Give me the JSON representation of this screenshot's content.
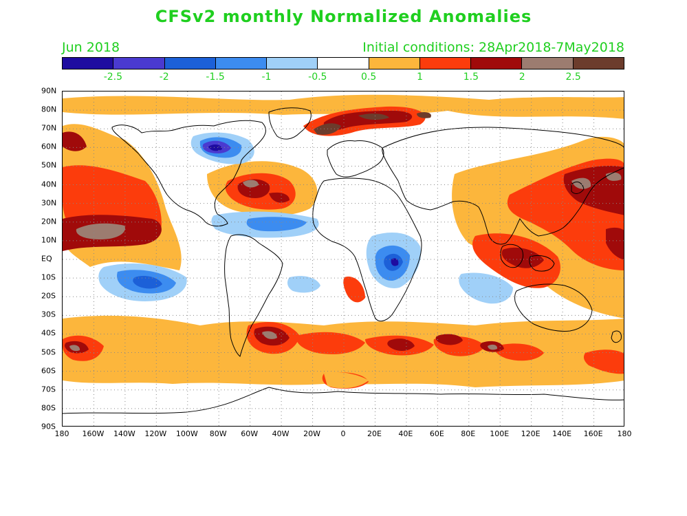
{
  "title": "CFSv2 monthly Normalized Anomalies",
  "forecast_month": "Jun 2018",
  "initial_conditions": "Initial conditions: 28Apr2018-7May2018",
  "legend": {
    "colors": [
      "#1e0ca0",
      "#4a3ad0",
      "#1c60d8",
      "#3c8cf0",
      "#a0d0f8",
      "#ffffff",
      "#fcb63c",
      "#fc3c0c",
      "#a00a0a",
      "#9c7c70",
      "#6c3c2c"
    ],
    "labels": [
      "-2.5",
      "-2",
      "-1.5",
      "-1",
      "-0.5",
      "0.5",
      "1",
      "1.5",
      "2",
      "2.5"
    ]
  },
  "axes": {
    "lat_labels": [
      "90N",
      "80N",
      "70N",
      "60N",
      "50N",
      "40N",
      "30N",
      "20N",
      "10N",
      "EQ",
      "10S",
      "20S",
      "30S",
      "40S",
      "50S",
      "60S",
      "70S",
      "80S",
      "90S"
    ],
    "lon_labels": [
      "180",
      "160W",
      "140W",
      "120W",
      "100W",
      "80W",
      "60W",
      "40W",
      "20W",
      "0",
      "20E",
      "40E",
      "60E",
      "80E",
      "100E",
      "120E",
      "140E",
      "160E",
      "180"
    ]
  }
}
